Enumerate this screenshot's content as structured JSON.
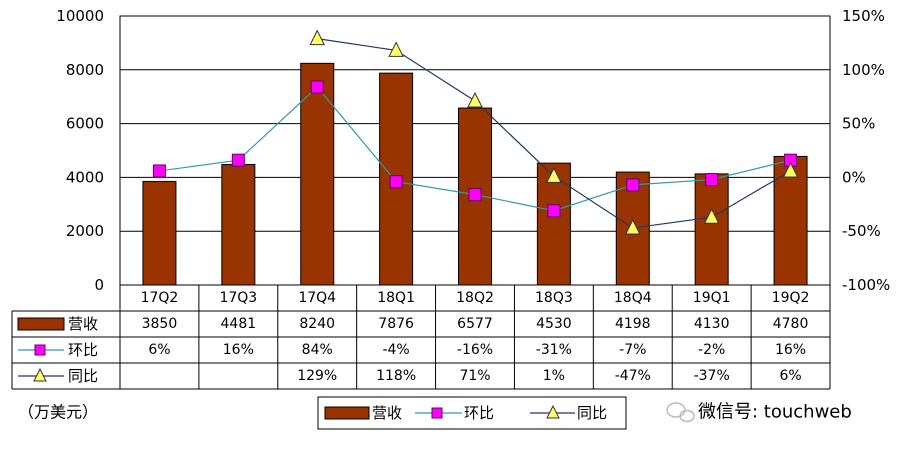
{
  "chart_data": {
    "type": "bar",
    "categories": [
      "17Q2",
      "17Q3",
      "17Q4",
      "18Q1",
      "18Q2",
      "18Q3",
      "18Q4",
      "19Q1",
      "19Q2"
    ],
    "series": [
      {
        "name": "营收",
        "kind": "bar",
        "axis": "left",
        "color": "#993300",
        "values": [
          3850,
          4481,
          8240,
          7876,
          6577,
          4530,
          4198,
          4130,
          4780
        ]
      },
      {
        "name": "环比",
        "kind": "line",
        "axis": "right",
        "marker": "square",
        "color": "#FF00FF",
        "line_color": "#3399AA",
        "values": [
          6,
          16,
          84,
          -4,
          -16,
          -31,
          -7,
          -2,
          16
        ]
      },
      {
        "name": "同比",
        "kind": "line",
        "axis": "right",
        "marker": "triangle",
        "color": "#FFFF66",
        "line_color": "#1F3864",
        "values": [
          null,
          null,
          129,
          118,
          71,
          1,
          -47,
          -37,
          6
        ]
      }
    ],
    "y_left": {
      "ylim": [
        0,
        10000
      ],
      "ticks": [
        "0",
        "2000",
        "4000",
        "6000",
        "8000",
        "10000"
      ]
    },
    "y_right": {
      "ylim": [
        -100,
        150
      ],
      "ticks": [
        "-100%",
        "-50%",
        "0%",
        "50%",
        "100%",
        "150%"
      ]
    },
    "table": {
      "rows": [
        {
          "name": "营收",
          "cells": [
            "3850",
            "4481",
            "8240",
            "7876",
            "6577",
            "4530",
            "4198",
            "4130",
            "4780"
          ]
        },
        {
          "name": "环比",
          "cells": [
            "6%",
            "16%",
            "84%",
            "-4%",
            "-16%",
            "-31%",
            "-7%",
            "-2%",
            "16%"
          ]
        },
        {
          "name": "同比",
          "cells": [
            "",
            "",
            "129%",
            "118%",
            "71%",
            "1%",
            "-47%",
            "-37%",
            "6%"
          ]
        }
      ]
    },
    "unit_label": "（万美元）",
    "legend": [
      "营收",
      "环比",
      "同比"
    ],
    "grid": true
  },
  "watermark": "微信号: touchweb"
}
